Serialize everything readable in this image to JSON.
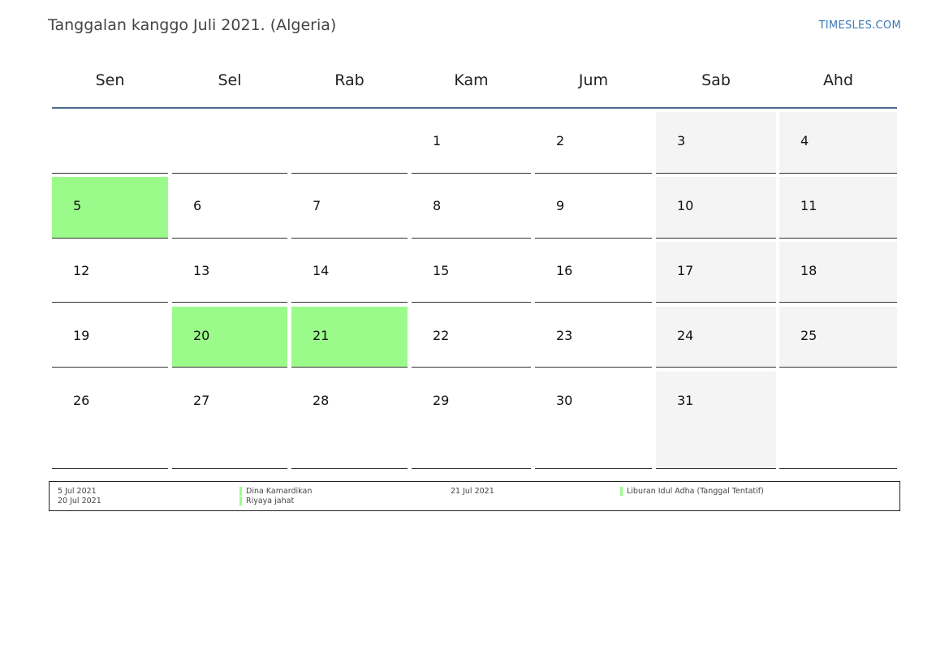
{
  "title": "Tanggalan kanggo Juli 2021. (Algeria)",
  "site": "TIMESLES.COM",
  "weekdays": [
    "Sen",
    "Sel",
    "Rab",
    "Kam",
    "Jum",
    "Sab",
    "Ahd"
  ],
  "weeks": [
    [
      "",
      "",
      "",
      "1",
      "2",
      "3",
      "4"
    ],
    [
      "5",
      "6",
      "7",
      "8",
      "9",
      "10",
      "11"
    ],
    [
      "12",
      "13",
      "14",
      "15",
      "16",
      "17",
      "18"
    ],
    [
      "19",
      "20",
      "21",
      "22",
      "23",
      "24",
      "25"
    ],
    [
      "26",
      "27",
      "28",
      "29",
      "30",
      "31",
      ""
    ]
  ],
  "holidays": [
    "5",
    "20",
    "21"
  ],
  "colors": {
    "holiday": "#9afb8a",
    "weekend": "#f4f4f4",
    "rule": "#4d6c8f",
    "link": "#3a78b5"
  },
  "legend": {
    "items": [
      {
        "date": "5 Jul 2021",
        "name": "Dina Kamardikan"
      },
      {
        "date": "20 Jul 2021",
        "name": "Riyaya jahat"
      },
      {
        "date": "21 Jul 2021",
        "name": "Liburan Idul Adha (Tanggal Tentatif)"
      }
    ]
  }
}
